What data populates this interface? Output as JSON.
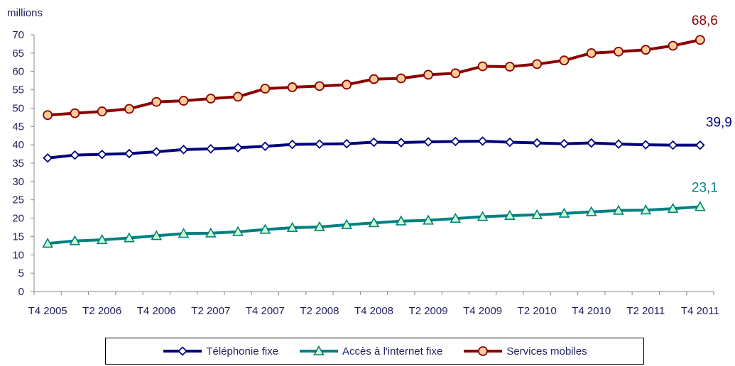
{
  "chart_data": {
    "type": "line",
    "ylabel": "millions",
    "ylim": [
      0,
      70
    ],
    "yticks": [
      0,
      5,
      10,
      15,
      20,
      25,
      30,
      35,
      40,
      45,
      50,
      55,
      60,
      65,
      70
    ],
    "xtick_labels": [
      "T4 2005",
      "T2 2006",
      "T4 2006",
      "T2 2007",
      "T4 2007",
      "T2 2008",
      "T4 2008",
      "T2 2009",
      "T4 2009",
      "T2 2010",
      "T4 2010",
      "T2 2011",
      "T4 2011"
    ],
    "x": [
      "T4 2005",
      "T1 2006",
      "T2 2006",
      "T3 2006",
      "T4 2006",
      "T1 2007",
      "T2 2007",
      "T3 2007",
      "T4 2007",
      "T1 2008",
      "T2 2008",
      "T3 2008",
      "T4 2008",
      "T1 2009",
      "T2 2009",
      "T3 2009",
      "T4 2009",
      "T1 2010",
      "T2 2010",
      "T3 2010",
      "T4 2010",
      "T1 2011",
      "T2 2011",
      "T3 2011",
      "T4 2011"
    ],
    "series": [
      {
        "name": "Téléphonie fixe",
        "color": "#00007f",
        "marker": "diamond",
        "end_label": "39,9",
        "values": [
          36.4,
          37.2,
          37.4,
          37.6,
          38.1,
          38.7,
          38.9,
          39.2,
          39.6,
          40.1,
          40.2,
          40.3,
          40.7,
          40.6,
          40.8,
          40.9,
          41.0,
          40.7,
          40.5,
          40.3,
          40.5,
          40.2,
          40.0,
          39.9,
          39.9
        ]
      },
      {
        "name": "Accès à l'internet fixe",
        "color": "#008080",
        "marker": "triangle",
        "end_label": "23,1",
        "values": [
          13.1,
          13.8,
          14.1,
          14.6,
          15.2,
          15.8,
          15.9,
          16.3,
          16.9,
          17.4,
          17.6,
          18.2,
          18.7,
          19.2,
          19.4,
          19.9,
          20.4,
          20.7,
          20.9,
          21.3,
          21.7,
          22.1,
          22.2,
          22.6,
          23.1
        ]
      },
      {
        "name": "Services mobiles",
        "color": "#8b0000",
        "marker": "circle",
        "end_label": "68,6",
        "values": [
          48.1,
          48.6,
          49.1,
          49.8,
          51.7,
          52.0,
          52.6,
          53.1,
          55.3,
          55.7,
          56.0,
          56.4,
          57.9,
          58.1,
          59.1,
          59.5,
          61.4,
          61.3,
          62.0,
          63.0,
          65.0,
          65.4,
          65.9,
          67.0,
          68.6
        ]
      }
    ],
    "grid": false,
    "legend_position": "bottom"
  }
}
